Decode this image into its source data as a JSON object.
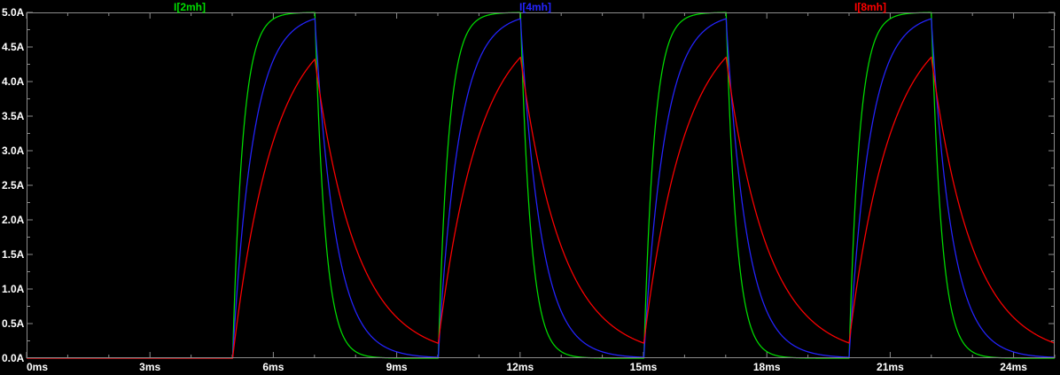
{
  "style": {
    "background": "#000000",
    "frame_color": "#8c8c8c",
    "text_color": "#ffffff"
  },
  "chart_data": {
    "type": "line",
    "title": "",
    "xlabel": "",
    "ylabel": "",
    "grid": false,
    "legend_position": "top",
    "x_axis": {
      "unit": "ms",
      "min": 0,
      "max": 25,
      "major_tick_ms": 3,
      "minor_tick_ms": 1,
      "tick_labels": [
        "0ms",
        "3ms",
        "6ms",
        "9ms",
        "12ms",
        "15ms",
        "18ms",
        "21ms",
        "24ms"
      ]
    },
    "y_axis": {
      "unit": "A",
      "min": 0,
      "max": 5,
      "major_tick_a": 0.5,
      "minor_tick_a": 0.25,
      "tick_labels": [
        "5.0A",
        "4.5A",
        "4.0A",
        "3.5A",
        "3.0A",
        "2.5A",
        "2.0A",
        "1.5A",
        "1.0A",
        "0.5A",
        "0.0A"
      ]
    },
    "series": [
      {
        "name": "I[2mh]",
        "color": "#00dd00",
        "tau_ms": 0.25,
        "peak_amps": 5.0,
        "min_amps": 0.0
      },
      {
        "name": "I[4mh]",
        "color": "#2424ff",
        "tau_ms": 0.5,
        "peak_amps": 4.9,
        "min_amps": 0.0
      },
      {
        "name": "I[8mh]",
        "color": "#ff0000",
        "tau_ms": 1.0,
        "peak_amps": 4.35,
        "min_amps": 0.22
      }
    ],
    "waveform_model": {
      "type": "rl_pulse_response",
      "steady_state_amps": 5,
      "pulse_delay_ms": 5,
      "pulse_on_ms": 2,
      "pulse_period_ms": 5,
      "sim_end_ms": 25
    }
  }
}
